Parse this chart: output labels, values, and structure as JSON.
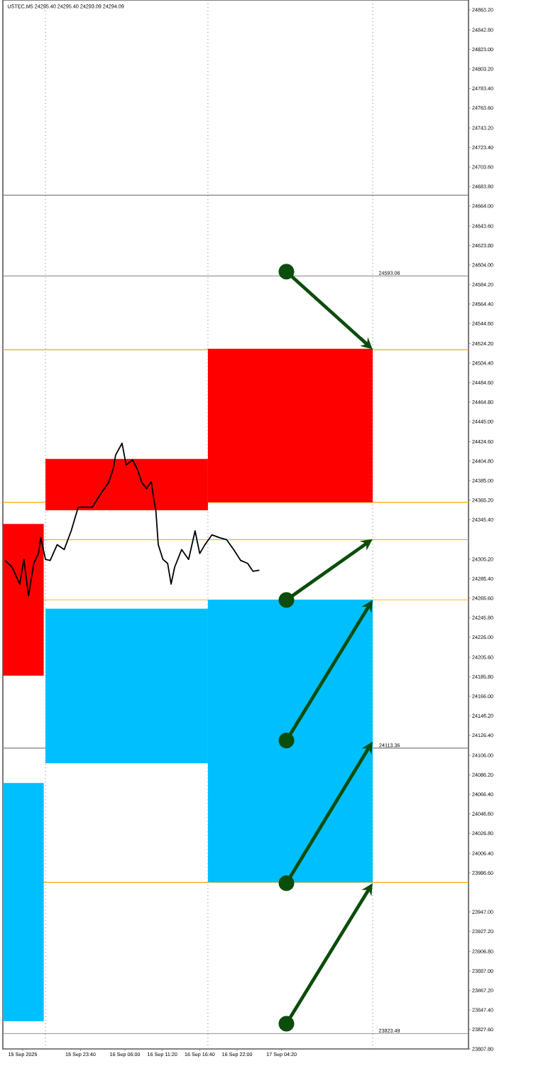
{
  "chart_data": {
    "type": "line",
    "title": "USTEC,M5 24295.40 24295.40 24293.09 24294.09",
    "series": [
      {
        "color": "#ff0000",
        "x": [
          "2025-09-15T12:35",
          "2025-09-15T18:25"
        ],
        "lower": [
          24187,
          24187
        ],
        "upper": [
          24341,
          24341
        ],
        "values": [
          null,
          null
        ]
      },
      {
        "color": "#ff0000",
        "x": [
          "2025-09-15T18:40",
          "2025-09-16T17:50"
        ],
        "lower": [
          24355,
          24355
        ],
        "upper": [
          24407,
          24407
        ],
        "values": [
          null,
          null
        ]
      },
      {
        "color": "#ff0000",
        "x": [
          "2025-09-16T17:50",
          "2025-09-17T17:20"
        ],
        "lower": [
          24363,
          24363
        ],
        "upper": [
          24519,
          24519
        ],
        "values": [
          null,
          null
        ]
      },
      {
        "color": "#00bfff",
        "x": [
          "2025-09-15T18:40",
          "2025-09-16T17:50"
        ],
        "lower": [
          24098,
          24098
        ],
        "upper": [
          24255,
          24255
        ],
        "values": [
          null,
          null
        ]
      },
      {
        "color": "#00bfff",
        "x": [
          "2025-09-15T12:35",
          "2025-09-15T18:25"
        ],
        "lower": [
          23836,
          23836
        ],
        "upper": [
          24078,
          24078
        ],
        "values": [
          null,
          null
        ]
      },
      {
        "color": "#00bfff",
        "x": [
          "2025-09-16T17:50",
          "2025-09-17T17:20"
        ],
        "lower": [
          23977,
          23977
        ],
        "upper": [
          24264,
          24264
        ],
        "values": [
          null,
          null
        ]
      },
      {
        "color": "#000000",
        "x": [
          "2025-09-15T12:55",
          "2025-09-15T13:55",
          "2025-09-15T15:00",
          "2025-09-15T15:35",
          "2025-09-15T16:15",
          "2025-09-15T17:00",
          "2025-09-15T17:40",
          "2025-09-15T18:00",
          "2025-09-15T18:40",
          "2025-09-15T19:20",
          "2025-09-15T20:20",
          "2025-09-15T21:20",
          "2025-09-15T22:20",
          "2025-09-15T23:20",
          "2025-09-16T00:20",
          "2025-09-16T01:20",
          "2025-09-16T02:40",
          "2025-09-16T03:40",
          "2025-09-16T04:20",
          "2025-09-16T04:40",
          "2025-09-16T05:35",
          "2025-09-16T06:10",
          "2025-09-16T07:05",
          "2025-09-16T07:45",
          "2025-09-16T08:25",
          "2025-09-16T09:05",
          "2025-09-16T09:45",
          "2025-09-16T10:05",
          "2025-09-16T10:25",
          "2025-09-16T10:45",
          "2025-09-16T11:25",
          "2025-09-16T12:05",
          "2025-09-16T12:35",
          "2025-09-16T13:05",
          "2025-09-16T14:05",
          "2025-09-16T15:05",
          "2025-09-16T16:00",
          "2025-09-16T16:40",
          "2025-09-16T17:25",
          "2025-09-16T18:25",
          "2025-09-16T19:30",
          "2025-09-16T20:30",
          "2025-09-16T21:30",
          "2025-09-16T22:30",
          "2025-09-16T23:30",
          "2025-09-17T00:15",
          "2025-09-17T01:10"
        ],
        "values": [
          24304,
          24297,
          24280,
          24305,
          24268,
          24301,
          24311,
          24327,
          24305,
          24304,
          24320,
          24315,
          24334,
          24358,
          24358,
          24358,
          24373,
          24383,
          24397,
          24411,
          24423,
          24401,
          24406,
          24397,
          24383,
          24377,
          24384,
          24368,
          24354,
          24320,
          24305,
          24301,
          24280,
          24297,
          24315,
          24305,
          24334,
          24311,
          24320,
          24330,
          24327,
          24325,
          24315,
          24304,
          24301,
          24293,
          24294
        ]
      }
    ],
    "xlim": [
      "2025-09-15T12:35",
      "2025-09-18T07:00"
    ],
    "xticks": [
      {
        "value": "2025-09-15T15:25",
        "label": "15 Sep 2025"
      },
      {
        "value": "2025-09-15T23:40",
        "label": "15 Sep 23:40"
      },
      {
        "value": "2025-09-16T06:00",
        "label": "16 Sep 06:00"
      },
      {
        "value": "2025-09-16T11:20",
        "label": "16 Sep 11:20"
      },
      {
        "value": "2025-09-16T16:40",
        "label": "16 Sep 16:40"
      },
      {
        "value": "2025-09-16T22:00",
        "label": "16 Sep 22:00"
      },
      {
        "value": "2025-09-17T04:20",
        "label": "17 Sep 04:20"
      }
    ],
    "ylim": [
      23807.8,
      24873.2
    ],
    "yticks": [
      {
        "value": 24863.2,
        "label": "24863.20"
      },
      {
        "value": 24842.8,
        "label": "24842.80"
      },
      {
        "value": 24823.0,
        "label": "24823.00"
      },
      {
        "value": 24803.2,
        "label": "24803.20"
      },
      {
        "value": 24783.4,
        "label": "24783.40"
      },
      {
        "value": 24763.6,
        "label": "24763.60"
      },
      {
        "value": 24743.2,
        "label": "24743.20"
      },
      {
        "value": 24723.4,
        "label": "24723.40"
      },
      {
        "value": 24703.6,
        "label": "24703.60"
      },
      {
        "value": 24683.8,
        "label": "24683.80"
      },
      {
        "value": 24664.0,
        "label": "24664.00"
      },
      {
        "value": 24643.6,
        "label": "24643.60"
      },
      {
        "value": 24623.8,
        "label": "24623.80"
      },
      {
        "value": 24604.0,
        "label": "24604.00"
      },
      {
        "value": 24584.2,
        "label": "24584.20"
      },
      {
        "value": 24564.4,
        "label": "24564.40"
      },
      {
        "value": 24544.6,
        "label": "24544.60"
      },
      {
        "value": 24524.2,
        "label": "24524.20"
      },
      {
        "value": 24504.4,
        "label": "24504.40"
      },
      {
        "value": 24484.6,
        "label": "24484.60"
      },
      {
        "value": 24464.8,
        "label": "24464.80"
      },
      {
        "value": 24445.0,
        "label": "24445.00"
      },
      {
        "value": 24424.6,
        "label": "24424.60"
      },
      {
        "value": 24404.8,
        "label": "24404.80"
      },
      {
        "value": 24385.0,
        "label": "24385.00"
      },
      {
        "value": 24365.2,
        "label": "24365.20"
      },
      {
        "value": 24345.4,
        "label": "24345.40"
      },
      {
        "value": 24305.2,
        "label": "24305.20"
      },
      {
        "value": 24285.4,
        "label": "24285.40"
      },
      {
        "value": 24265.6,
        "label": "24265.60"
      },
      {
        "value": 24245.8,
        "label": "24245.80"
      },
      {
        "value": 24226.0,
        "label": "24226.00"
      },
      {
        "value": 24205.6,
        "label": "24205.60"
      },
      {
        "value": 24185.8,
        "label": "24185.80"
      },
      {
        "value": 24166.0,
        "label": "24166.00"
      },
      {
        "value": 24146.2,
        "label": "24146.20"
      },
      {
        "value": 24126.4,
        "label": "24126.40"
      },
      {
        "value": 24106.0,
        "label": "24106.00"
      },
      {
        "value": 24086.2,
        "label": "24086.20"
      },
      {
        "value": 24066.4,
        "label": "24066.40"
      },
      {
        "value": 24046.6,
        "label": "24046.60"
      },
      {
        "value": 24026.8,
        "label": "24026.80"
      },
      {
        "value": 24006.4,
        "label": "24006.40"
      },
      {
        "value": 23986.6,
        "label": "23986.60"
      },
      {
        "value": 23947.0,
        "label": "23947.00"
      },
      {
        "value": 23927.2,
        "label": "23927.20"
      },
      {
        "value": 23906.8,
        "label": "23906.80"
      },
      {
        "value": 23887.0,
        "label": "23887.00"
      },
      {
        "value": 23867.2,
        "label": "23867.20"
      },
      {
        "value": 23847.4,
        "label": "23847.40"
      },
      {
        "value": 23827.6,
        "label": "23827.60"
      },
      {
        "value": 23807.8,
        "label": "23807.80"
      }
    ],
    "ref_lines": [
      {
        "axis": "y",
        "value": 24518,
        "color": "#ffa500"
      },
      {
        "axis": "y",
        "value": 24363,
        "color": "#ffa500"
      },
      {
        "axis": "y",
        "value": 24325,
        "color": "#ffa500"
      },
      {
        "axis": "y",
        "value": 24264,
        "color": "#ffa500"
      },
      {
        "axis": "y",
        "value": 23977,
        "color": "#ffa500"
      },
      {
        "axis": "y",
        "value": 24675,
        "color": "#808080"
      },
      {
        "axis": "y",
        "value": 24593.06,
        "label": "24593.06",
        "color": "#808080"
      },
      {
        "axis": "y",
        "value": 24113.36,
        "label": "24113.36",
        "color": "#808080"
      },
      {
        "axis": "y",
        "value": 23823.49,
        "label": "23823.49",
        "color": "#808080"
      },
      {
        "axis": "x",
        "value": "2025-09-15T18:40",
        "color": "#808080",
        "line_style": "dotted"
      },
      {
        "axis": "x",
        "value": "2025-09-16T17:50",
        "color": "#808080",
        "line_style": "dotted"
      },
      {
        "axis": "x",
        "value": "2025-09-17T17:20",
        "color": "#808080",
        "line_style": "dotted"
      }
    ]
  }
}
